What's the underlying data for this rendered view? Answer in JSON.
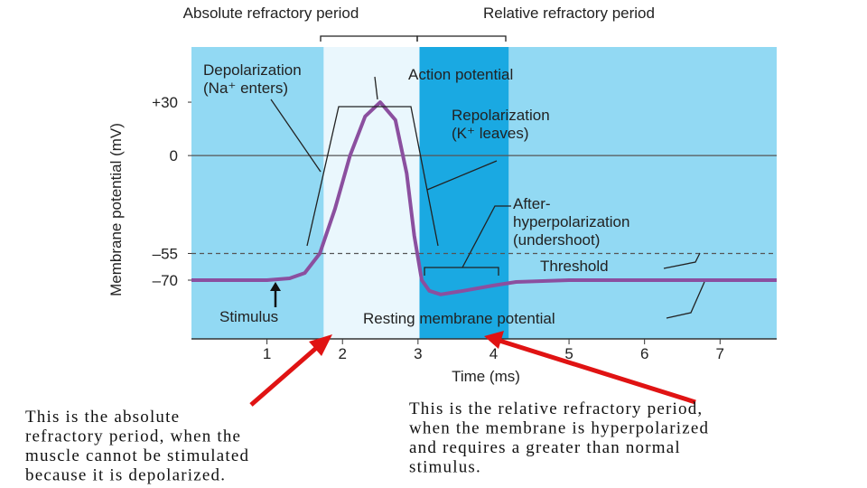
{
  "chart_data": {
    "type": "line",
    "x_label": "Time (ms)",
    "y_label": "Membrane potential (mV)",
    "xlim": [
      0,
      7.75
    ],
    "ylim": [
      -103,
      61
    ],
    "xticks": [
      1,
      2,
      3,
      4,
      5,
      6,
      7
    ],
    "yticks": [
      {
        "value": 30,
        "label": "+30"
      },
      0,
      {
        "value": -55,
        "label": "–55"
      },
      {
        "value": -70,
        "label": "–70"
      }
    ],
    "hlines": [
      {
        "value": 0,
        "style": "solid"
      },
      {
        "value": -55,
        "style": "dashed"
      }
    ],
    "bands": [
      {
        "name": "Absolute refractory period",
        "xlim": [
          1.75,
          3.02
        ],
        "color": "#eaf7fd"
      },
      {
        "name": "Relative refractory period",
        "xlim": [
          3.02,
          4.2
        ],
        "color": "#1aa9e2"
      }
    ],
    "background": "#92d9f3",
    "series": [
      {
        "name": "Action potential",
        "color": "#8b4f9f",
        "x": [
          0,
          1,
          1.3,
          1.5,
          1.7,
          1.9,
          2.1,
          2.3,
          2.5,
          2.7,
          2.85,
          2.95,
          3.05,
          3.15,
          3.3,
          3.6,
          4,
          4.3,
          5,
          6,
          7,
          7.75
        ],
        "values": [
          -70,
          -70,
          -69,
          -66,
          -55,
          -30,
          0,
          22,
          30,
          20,
          -10,
          -45,
          -70,
          -76,
          -78,
          -76,
          -73,
          -71,
          -70,
          -70,
          -70,
          -70
        ]
      }
    ],
    "annotations": [
      "Depolarization",
      "(Na⁺ enters)",
      "Repolarization",
      "(K⁺ leaves)",
      "After-",
      "hyperpolarization",
      "(undershoot)",
      "Threshold",
      "Stimulus",
      "Resting membrane potential"
    ],
    "notes": [
      [
        "This is the absolute",
        "refractory period, when the",
        "muscle cannot be stimulated",
        "because it is depolarized."
      ],
      [
        "This is the relative refractory period,",
        "when the membrane is hyperpolarized",
        "and requires a greater than normal",
        "stimulus."
      ]
    ]
  }
}
